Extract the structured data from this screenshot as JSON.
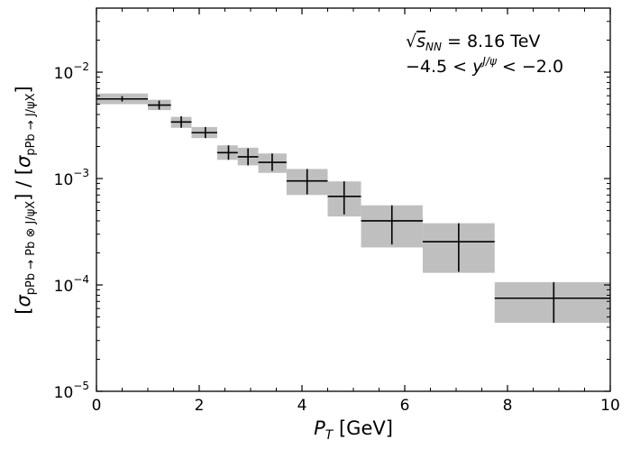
{
  "chart_data": {
    "type": "errorbar",
    "xlabel": "P_T [GeV]",
    "ylabel": "[σ_pPb→Pb⊗J/ψX] / [σ_pPb→J/ψX]",
    "xlim": [
      0,
      10
    ],
    "ylim": [
      1e-05,
      0.04
    ],
    "yscale": "log",
    "x_ticks": [
      0,
      2,
      4,
      6,
      8,
      10
    ],
    "y_ticks": [
      {
        "value": 1e-05,
        "label": "10^-5"
      },
      {
        "value": 0.0001,
        "label": "10^-4"
      },
      {
        "value": 0.001,
        "label": "10^-3"
      },
      {
        "value": 0.01,
        "label": "10^-2"
      }
    ],
    "annotations": [
      {
        "text": "√s_NN = 8.16 TeV"
      },
      {
        "text": "−4.5 < y^J/ψ < −2.0"
      }
    ],
    "points": [
      {
        "x_low": 0.0,
        "x_high": 1.0,
        "x": 0.5,
        "y": 0.0056,
        "stat_low": 0.0053,
        "stat_high": 0.00595,
        "sys_low": 0.005,
        "sys_high": 0.0063
      },
      {
        "x_low": 1.0,
        "x_high": 1.45,
        "x": 1.22,
        "y": 0.0049,
        "stat_low": 0.00445,
        "stat_high": 0.0054,
        "sys_low": 0.0044,
        "sys_high": 0.0055
      },
      {
        "x_low": 1.45,
        "x_high": 1.85,
        "x": 1.65,
        "y": 0.0034,
        "stat_low": 0.003,
        "stat_high": 0.00385,
        "sys_low": 0.003,
        "sys_high": 0.0038
      },
      {
        "x_low": 1.85,
        "x_high": 2.35,
        "x": 2.12,
        "y": 0.0027,
        "stat_low": 0.0024,
        "stat_high": 0.00305,
        "sys_low": 0.0024,
        "sys_high": 0.00305
      },
      {
        "x_low": 2.35,
        "x_high": 2.75,
        "x": 2.57,
        "y": 0.00175,
        "stat_low": 0.0015,
        "stat_high": 0.00205,
        "sys_low": 0.0015,
        "sys_high": 0.00205
      },
      {
        "x_low": 2.75,
        "x_high": 3.15,
        "x": 2.95,
        "y": 0.0016,
        "stat_low": 0.00133,
        "stat_high": 0.00192,
        "sys_low": 0.00133,
        "sys_high": 0.00195
      },
      {
        "x_low": 3.15,
        "x_high": 3.7,
        "x": 3.42,
        "y": 0.00142,
        "stat_low": 0.00118,
        "stat_high": 0.00172,
        "sys_low": 0.00113,
        "sys_high": 0.00172
      },
      {
        "x_low": 3.7,
        "x_high": 4.5,
        "x": 4.1,
        "y": 0.00095,
        "stat_low": 0.00071,
        "stat_high": 0.00123,
        "sys_low": 0.0007,
        "sys_high": 0.00123
      },
      {
        "x_low": 4.5,
        "x_high": 5.15,
        "x": 4.82,
        "y": 0.00068,
        "stat_low": 0.00046,
        "stat_high": 0.00094,
        "sys_low": 0.00044,
        "sys_high": 0.00094
      },
      {
        "x_low": 5.15,
        "x_high": 6.35,
        "x": 5.75,
        "y": 0.0004,
        "stat_low": 0.00024,
        "stat_high": 0.00056,
        "sys_low": 0.000225,
        "sys_high": 0.00056
      },
      {
        "x_low": 6.35,
        "x_high": 7.75,
        "x": 7.05,
        "y": 0.000255,
        "stat_low": 0.000133,
        "stat_high": 0.00038,
        "sys_low": 0.00013,
        "sys_high": 0.00038
      },
      {
        "x_low": 7.75,
        "x_high": 10.0,
        "x": 8.9,
        "y": 7.5e-05,
        "stat_low": 4.4e-05,
        "stat_high": 0.000106,
        "sys_low": 4.4e-05,
        "sys_high": 0.000106
      }
    ],
    "colors": {
      "box": "#bfbfbf",
      "line": "#000000",
      "axis": "#000000"
    }
  }
}
